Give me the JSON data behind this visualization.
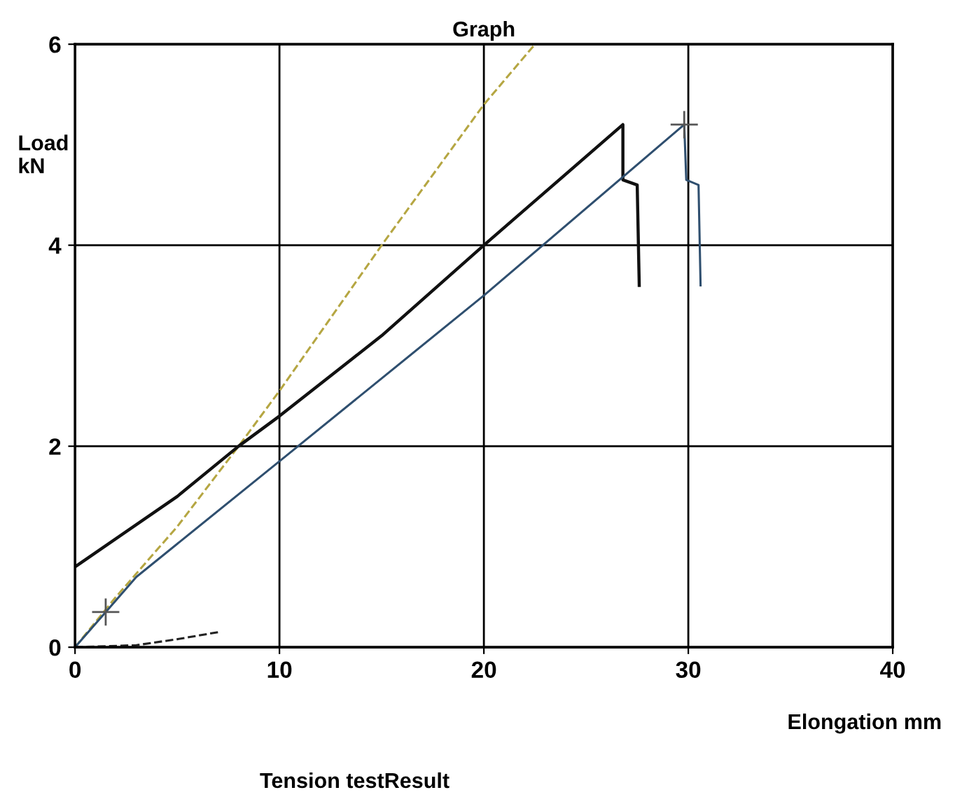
{
  "chart_data": {
    "type": "line",
    "title": "Graph",
    "xlabel": "Elongation mm",
    "ylabel": "Load\nkN",
    "annotations": [
      "Tension testResult"
    ],
    "xlim": [
      0,
      40
    ],
    "ylim": [
      0,
      6
    ],
    "xticks": [
      0,
      10,
      20,
      30,
      40
    ],
    "yticks": [
      0,
      2,
      4,
      6
    ],
    "grid": true,
    "legend": false,
    "series": [
      {
        "color": "#b5a642",
        "line_style": "dashed",
        "x": [
          0,
          2,
          5,
          8,
          10,
          15,
          20,
          22.5
        ],
        "values": [
          0,
          0.5,
          1.2,
          2,
          2.55,
          4.0,
          5.4,
          6
        ]
      },
      {
        "color": "#111111",
        "x": [
          0,
          5,
          8,
          10,
          15,
          20,
          26.8,
          26.8,
          27.5,
          27.6
        ],
        "values": [
          0.8,
          1.5,
          2,
          2.3,
          3.1,
          4.0,
          5.2,
          4.65,
          4.6,
          3.6
        ]
      },
      {
        "color": "#2f4f6f",
        "x": [
          0,
          1.5,
          3,
          10,
          20,
          29.8,
          29.9,
          30.5,
          30.6
        ],
        "values": [
          0,
          0.35,
          0.7,
          1.85,
          3.5,
          5.2,
          4.65,
          4.6,
          3.6
        ]
      },
      {
        "color": "#222222",
        "line_style": "dashed",
        "x": [
          0,
          3,
          5,
          7
        ],
        "values": [
          0,
          0.02,
          0.08,
          0.15
        ]
      },
      {
        "type": "scatter",
        "marker": "cross",
        "color": "#555555",
        "x": [
          1.5,
          29.8
        ],
        "values": [
          0.35,
          5.2
        ]
      }
    ]
  }
}
